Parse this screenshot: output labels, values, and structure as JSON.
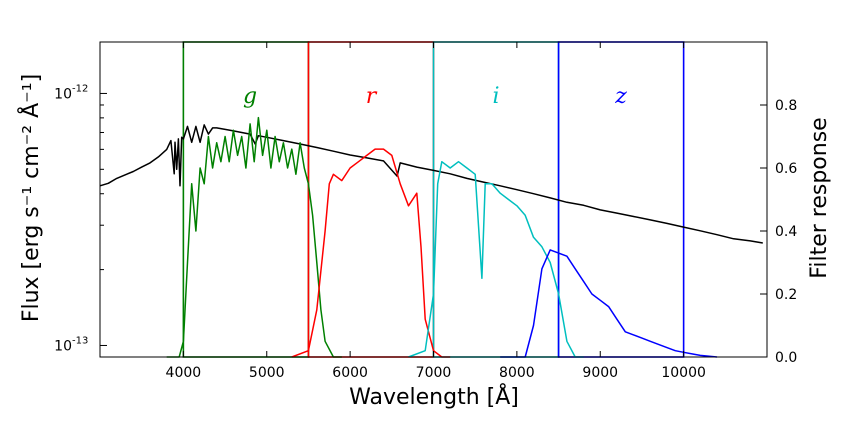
{
  "chart_data": {
    "type": "line",
    "xlabel": "Wavelength [Å]",
    "ylabel_left": "Flux [erg s⁻¹ cm⁻² Å⁻¹]",
    "ylabel_right": "Filter response",
    "xlim": [
      3000,
      11000
    ],
    "ylim_left": [
      9e-14,
      1.6e-12
    ],
    "yscale_left": "log",
    "ylim_right": [
      0,
      1.0
    ],
    "xticks": [
      4000,
      5000,
      6000,
      7000,
      8000,
      9000,
      10000
    ],
    "xtick_labels": [
      "4000",
      "5000",
      "6000",
      "7000",
      "8000",
      "9000",
      "10000"
    ],
    "yticks_left": [
      {
        "value": 1e-12,
        "label": "10",
        "exp": "-12"
      },
      {
        "value": 1e-13,
        "label": "10",
        "exp": "-13"
      }
    ],
    "yticks_right": [
      0.0,
      0.2,
      0.4,
      0.6,
      0.8
    ],
    "ytick_labels_right": [
      "0.0",
      "0.2",
      "0.4",
      "0.6",
      "0.8"
    ],
    "bands": [
      {
        "name": "g",
        "range": [
          4000,
          5500
        ],
        "color": "#008000",
        "label_x": 4800
      },
      {
        "name": "r",
        "range": [
          5500,
          7000
        ],
        "color": "#ff0000",
        "label_x": 6250
      },
      {
        "name": "i",
        "range": [
          7000,
          8500
        ],
        "color": "#00bfbf",
        "label_x": 7750
      },
      {
        "name": "z",
        "range": [
          8500,
          10000
        ],
        "color": "#0000ff",
        "label_x": 9250
      }
    ],
    "series": [
      {
        "name": "spectrum",
        "axis": "left",
        "color": "#000000",
        "points": [
          [
            3000,
            4.3e-13
          ],
          [
            3100,
            4.4e-13
          ],
          [
            3200,
            4.6e-13
          ],
          [
            3300,
            4.75e-13
          ],
          [
            3400,
            4.9e-13
          ],
          [
            3500,
            5.1e-13
          ],
          [
            3600,
            5.3e-13
          ],
          [
            3700,
            5.6e-13
          ],
          [
            3800,
            6e-13
          ],
          [
            3850,
            6.5e-13
          ],
          [
            3890,
            4.8e-13
          ],
          [
            3900,
            6.4e-13
          ],
          [
            3920,
            5e-13
          ],
          [
            3940,
            6.6e-13
          ],
          [
            3960,
            4.3e-13
          ],
          [
            3980,
            6.7e-13
          ],
          [
            4000,
            6.6e-13
          ],
          [
            4050,
            7.4e-13
          ],
          [
            4100,
            6.4e-13
          ],
          [
            4150,
            7.4e-13
          ],
          [
            4200,
            6.4e-13
          ],
          [
            4250,
            7.5e-13
          ],
          [
            4300,
            6.9e-13
          ],
          [
            4350,
            7.3e-13
          ],
          [
            4400,
            7.3e-13
          ],
          [
            4500,
            7.2e-13
          ],
          [
            4600,
            7.1e-13
          ],
          [
            4700,
            7e-13
          ],
          [
            4800,
            6.9e-13
          ],
          [
            4861,
            6.3e-13
          ],
          [
            4900,
            6.8e-13
          ],
          [
            5000,
            6.7e-13
          ],
          [
            5200,
            6.5e-13
          ],
          [
            5400,
            6.3e-13
          ],
          [
            5600,
            6.1e-13
          ],
          [
            5800,
            5.9e-13
          ],
          [
            6000,
            5.7e-13
          ],
          [
            6200,
            5.55e-13
          ],
          [
            6400,
            5.4e-13
          ],
          [
            6563,
            4.7e-13
          ],
          [
            6600,
            5.3e-13
          ],
          [
            6800,
            5.1e-13
          ],
          [
            7000,
            4.95e-13
          ],
          [
            7200,
            4.8e-13
          ],
          [
            7400,
            4.6e-13
          ],
          [
            7600,
            4.45e-13
          ],
          [
            7800,
            4.3e-13
          ],
          [
            8000,
            4.15e-13
          ],
          [
            8200,
            4e-13
          ],
          [
            8400,
            3.85e-13
          ],
          [
            8600,
            3.7e-13
          ],
          [
            8800,
            3.6e-13
          ],
          [
            9000,
            3.45e-13
          ],
          [
            9200,
            3.35e-13
          ],
          [
            9400,
            3.25e-13
          ],
          [
            9600,
            3.15e-13
          ],
          [
            9800,
            3.05e-13
          ],
          [
            10000,
            2.95e-13
          ],
          [
            10200,
            2.85e-13
          ],
          [
            10400,
            2.75e-13
          ],
          [
            10600,
            2.65e-13
          ],
          [
            10800,
            2.6e-13
          ],
          [
            10950,
            2.55e-13
          ]
        ]
      },
      {
        "name": "g",
        "axis": "right",
        "color": "#008000",
        "points": [
          [
            3800,
            0.0
          ],
          [
            3950,
            0.0
          ],
          [
            4000,
            0.05
          ],
          [
            4050,
            0.3
          ],
          [
            4100,
            0.55
          ],
          [
            4150,
            0.4
          ],
          [
            4200,
            0.6
          ],
          [
            4250,
            0.55
          ],
          [
            4300,
            0.7
          ],
          [
            4350,
            0.6
          ],
          [
            4400,
            0.68
          ],
          [
            4450,
            0.62
          ],
          [
            4500,
            0.7
          ],
          [
            4550,
            0.62
          ],
          [
            4600,
            0.72
          ],
          [
            4650,
            0.64
          ],
          [
            4700,
            0.7
          ],
          [
            4750,
            0.6
          ],
          [
            4800,
            0.74
          ],
          [
            4850,
            0.62
          ],
          [
            4900,
            0.76
          ],
          [
            4950,
            0.64
          ],
          [
            5000,
            0.72
          ],
          [
            5050,
            0.6
          ],
          [
            5100,
            0.7
          ],
          [
            5150,
            0.62
          ],
          [
            5200,
            0.68
          ],
          [
            5250,
            0.6
          ],
          [
            5300,
            0.66
          ],
          [
            5350,
            0.58
          ],
          [
            5400,
            0.68
          ],
          [
            5450,
            0.6
          ],
          [
            5500,
            0.55
          ],
          [
            5550,
            0.45
          ],
          [
            5600,
            0.3
          ],
          [
            5650,
            0.15
          ],
          [
            5700,
            0.05
          ],
          [
            5800,
            0.0
          ],
          [
            5900,
            0.0
          ]
        ]
      },
      {
        "name": "r",
        "axis": "right",
        "color": "#ff0000",
        "points": [
          [
            5300,
            0.0
          ],
          [
            5500,
            0.02
          ],
          [
            5600,
            0.15
          ],
          [
            5700,
            0.4
          ],
          [
            5750,
            0.55
          ],
          [
            5800,
            0.58
          ],
          [
            5900,
            0.56
          ],
          [
            6000,
            0.6
          ],
          [
            6100,
            0.62
          ],
          [
            6200,
            0.64
          ],
          [
            6300,
            0.66
          ],
          [
            6400,
            0.66
          ],
          [
            6500,
            0.64
          ],
          [
            6600,
            0.55
          ],
          [
            6700,
            0.48
          ],
          [
            6800,
            0.52
          ],
          [
            6850,
            0.35
          ],
          [
            6900,
            0.12
          ],
          [
            7000,
            0.02
          ],
          [
            7100,
            0.0
          ],
          [
            7200,
            0.0
          ]
        ]
      },
      {
        "name": "i",
        "axis": "right",
        "color": "#00bfbf",
        "points": [
          [
            6700,
            0.0
          ],
          [
            6900,
            0.02
          ],
          [
            7000,
            0.2
          ],
          [
            7050,
            0.55
          ],
          [
            7100,
            0.62
          ],
          [
            7200,
            0.6
          ],
          [
            7300,
            0.62
          ],
          [
            7400,
            0.6
          ],
          [
            7500,
            0.58
          ],
          [
            7580,
            0.25
          ],
          [
            7620,
            0.55
          ],
          [
            7700,
            0.55
          ],
          [
            7800,
            0.52
          ],
          [
            7900,
            0.5
          ],
          [
            8000,
            0.48
          ],
          [
            8100,
            0.45
          ],
          [
            8200,
            0.38
          ],
          [
            8300,
            0.35
          ],
          [
            8400,
            0.3
          ],
          [
            8500,
            0.2
          ],
          [
            8600,
            0.05
          ],
          [
            8700,
            0.0
          ],
          [
            8800,
            0.0
          ]
        ]
      },
      {
        "name": "z",
        "axis": "right",
        "color": "#0000ff",
        "points": [
          [
            7800,
            0.0
          ],
          [
            8100,
            0.0
          ],
          [
            8200,
            0.1
          ],
          [
            8300,
            0.28
          ],
          [
            8400,
            0.34
          ],
          [
            8500,
            0.33
          ],
          [
            8600,
            0.32
          ],
          [
            8700,
            0.28
          ],
          [
            8800,
            0.24
          ],
          [
            8900,
            0.2
          ],
          [
            9000,
            0.18
          ],
          [
            9100,
            0.16
          ],
          [
            9200,
            0.12
          ],
          [
            9300,
            0.08
          ],
          [
            9400,
            0.07
          ],
          [
            9500,
            0.06
          ],
          [
            9600,
            0.05
          ],
          [
            9700,
            0.04
          ],
          [
            9800,
            0.03
          ],
          [
            9900,
            0.02
          ],
          [
            10000,
            0.015
          ],
          [
            10100,
            0.01
          ],
          [
            10200,
            0.005
          ],
          [
            10400,
            0.0
          ]
        ]
      }
    ]
  }
}
